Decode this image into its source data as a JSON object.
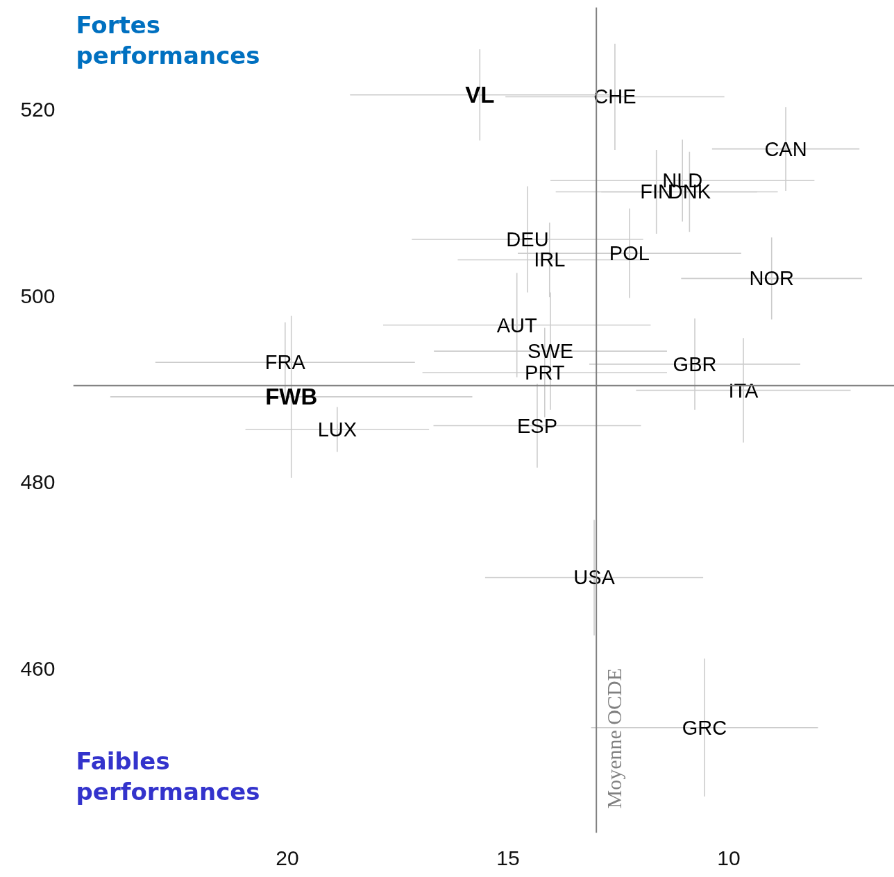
{
  "chart_data": {
    "type": "scatter",
    "marker": "cross",
    "grid": false,
    "annotations": [
      "Fortes\nperformances",
      "Faibles\nperformances"
    ],
    "xlim": [
      24.85,
      6.25
    ],
    "ylim": [
      442.4,
      531.0
    ],
    "xticks": [
      20,
      15,
      10
    ],
    "yticks": [
      460,
      480,
      500,
      520
    ],
    "ref_lines": [
      {
        "axis": "x",
        "value": 13.0,
        "label": "Moyenne OCDE",
        "color": "#808080"
      },
      {
        "axis": "y",
        "value": 490.4,
        "color": "#808080"
      }
    ],
    "series": [
      {
        "color": "#cccccc",
        "x": [
          12.58,
          8.71,
          11.05,
          11.64,
          10.89,
          12.25,
          14.56,
          14.06,
          9.03,
          14.8,
          14.04,
          14.17,
          10.77,
          9.67,
          14.34,
          20.05,
          18.87,
          13.05,
          10.55
        ],
        "values": [
          521.4,
          515.8,
          512.4,
          511.2,
          511.2,
          504.6,
          506.1,
          503.9,
          501.9,
          496.9,
          494.1,
          491.8,
          492.7,
          489.9,
          486.1,
          492.9,
          485.7,
          469.8,
          453.7
        ],
        "errors": [
          5.7,
          4.5,
          4.4,
          4.5,
          4.3,
          4.8,
          5.7,
          4.0,
          4.4,
          5.6,
          6.3,
          4.8,
          4.9,
          5.6,
          4.5,
          4.3,
          2.4,
          6.2,
          7.4
        ],
        "xerrors": [
          2.48,
          1.67,
          2.99,
          2.28,
          2.0,
          2.53,
          2.62,
          2.08,
          2.05,
          3.03,
          2.64,
          2.77,
          2.39,
          2.43,
          2.35,
          2.94,
          2.08,
          2.47,
          2.57
        ],
        "value_labels": [
          "CHE",
          "CAN",
          "NLD",
          "FIN",
          "DNK",
          "POL",
          "DEU",
          "IRL",
          "NOR",
          "AUT",
          "SWE",
          "PRT",
          "GBR",
          "ITA",
          "ESP",
          "FRA",
          "LUX",
          "USA",
          "GRC"
        ]
      },
      {
        "color": "#cccccc",
        "x": [
          15.64,
          19.91
        ],
        "values": [
          521.6,
          489.2
        ],
        "errors": [
          4.9,
          8.7
        ],
        "xerrors": [
          2.94,
          4.1
        ],
        "value_labels": [
          "VL",
          "FWB"
        ]
      }
    ]
  }
}
